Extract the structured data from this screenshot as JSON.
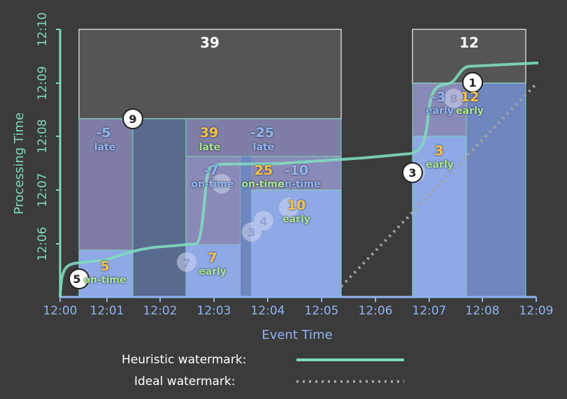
{
  "axes": {
    "x_label": "Event Time",
    "y_label": "Processing Time",
    "x_ticks": [
      "12:00",
      "12:01",
      "12:02",
      "12:03",
      "12:04",
      "12:05",
      "12:06",
      "12:07",
      "12:08",
      "12:09"
    ],
    "y_ticks": [
      "12:06",
      "12:07",
      "12:08",
      "12:09",
      "12:10"
    ]
  },
  "legend": {
    "heuristic_label": "Heuristic watermark:",
    "ideal_label": "Ideal watermark:"
  },
  "panes": {
    "window1_total": "39",
    "window2_total": "12",
    "p1": {
      "value": "5",
      "status": "on-time"
    },
    "p2": {
      "value": "-5",
      "status": "late"
    },
    "p3": {
      "value": "7",
      "status": "early"
    },
    "p4": {
      "value": "-7",
      "status": "on-time"
    },
    "p5": {
      "value": "39",
      "status": "late"
    },
    "p6": {
      "value": "10",
      "status": "early"
    },
    "p7": {
      "value": "-10",
      "status": "on-time"
    },
    "p8": {
      "value": "25",
      "status": "on-time"
    },
    "p9": {
      "value": "-25",
      "status": "late"
    },
    "p10": {
      "value": "3",
      "status": "early"
    },
    "p11": {
      "value": "-3",
      "status": "early"
    },
    "p12": {
      "value": "12",
      "status": "early"
    }
  },
  "data_points": {
    "d5": "5",
    "d9": "9",
    "d7": "7",
    "d3a": "3",
    "d4": "4",
    "d1b": "1",
    "d3": "3",
    "d8": "8",
    "d1": "1"
  },
  "colors": {
    "background": "#3b3b3b",
    "axis": "#8fb3f0",
    "heuristic": "#7fd9bf",
    "ideal": "#a0a0a0",
    "yellow": "#f2c14e",
    "green": "#a6e08f",
    "blue_label": "#8fb3f0"
  }
}
